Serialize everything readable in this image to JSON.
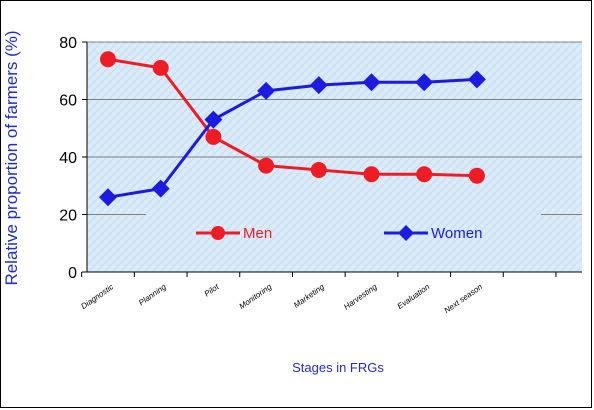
{
  "chart_data": {
    "type": "line",
    "xlabel": "Stages in FRGs",
    "ylabel": "Relative proportion of farmers (%)",
    "categories": [
      "Diagnostic",
      "Planning",
      "Pilot",
      "Monitoring",
      "Marketing",
      "Harvesting",
      "Evaluation",
      "Next season"
    ],
    "ylim": [
      0,
      80
    ],
    "yticks": [
      0,
      20,
      40,
      60,
      80
    ],
    "grid": true,
    "legend_position": "center",
    "series": [
      {
        "name": "Men",
        "color": "#ee1c24",
        "marker": "circle",
        "values": [
          74,
          71,
          47,
          37,
          35.5,
          34,
          34,
          33.5
        ]
      },
      {
        "name": "Women",
        "color": "#1d1be0",
        "marker": "diamond",
        "values": [
          26,
          29,
          53,
          63,
          65,
          66,
          66,
          67
        ]
      }
    ]
  }
}
